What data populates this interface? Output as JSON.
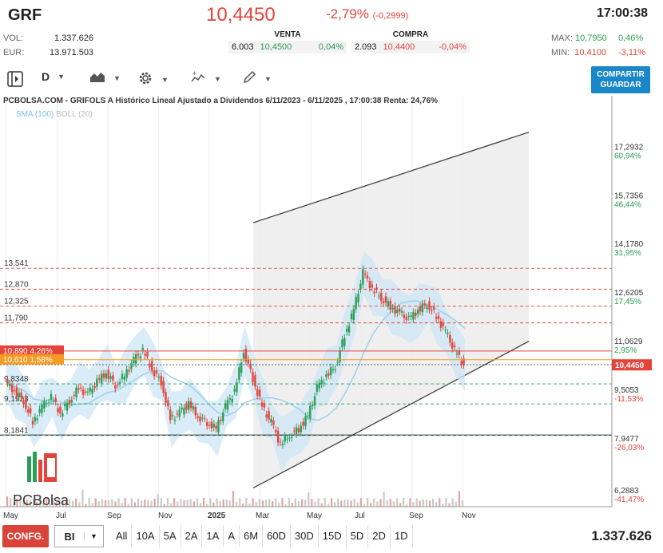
{
  "header": {
    "ticker": "GRF",
    "price": "10,4450",
    "change": "-2,79%",
    "change_abs": "(-0,2999)",
    "time": "17:00:38",
    "vol_label": "VOL:",
    "vol_value": "1.337.626",
    "eur_label": "EUR:",
    "eur_value": "13.971.503",
    "sell_title": "VENTA",
    "sell_qty": "6.003",
    "sell_price": "10,4500",
    "sell_pct": "0,04%",
    "buy_title": "COMPRA",
    "buy_qty": "2.093",
    "buy_price": "10,4400",
    "buy_pct": "-0,04%",
    "max_label": "MAX:",
    "max_value": "10,7950",
    "max_pct": "0,46%",
    "min_label": "MIN:",
    "min_value": "10,4100",
    "min_pct": "-3,11%"
  },
  "toolbar": {
    "period": "D",
    "save_button": "COMPARTIR\nGUARDAR",
    "icons": [
      "panel-toggle-icon",
      "area-chart-icon",
      "gear-icon",
      "indicator-icon",
      "pencil-icon"
    ]
  },
  "chart": {
    "title": "PCBOLSA.COM - GRIFOLS A Histórico Lineal Ajustado a Dividendos 6/11/2023 - 6/11/2025 , 17:00:38 Renta: 24,76%",
    "sma_label": "SMA (100)",
    "boll_label": "BOLL (20)",
    "logo_text": "PCBolsa",
    "colors": {
      "up": "#2a9d57",
      "down": "#e4443a",
      "sma": "#9ccfee",
      "band": "#cde6f6",
      "channel": "#e0e0e0"
    }
  },
  "chart_data": {
    "type": "candlestick",
    "x_ticks": [
      "May",
      "Jul",
      "Sep",
      "Nov",
      "2025",
      "Mar",
      "May",
      "Jul",
      "Sep",
      "Nov"
    ],
    "right_axis": [
      {
        "price": "17,2932",
        "pct": "60,94%"
      },
      {
        "price": "15,7356",
        "pct": "46,44%"
      },
      {
        "price": "14,1780",
        "pct": "31,95%"
      },
      {
        "price": "12,6205",
        "pct": "17,45%"
      },
      {
        "price": "11,0629",
        "pct": "2,95%"
      },
      {
        "price": "9,5053",
        "pct": "-11,53%"
      },
      {
        "price": "7,9477",
        "pct": "-26,03%"
      },
      {
        "price": "6,2883",
        "pct": "-41,47%"
      }
    ],
    "current_price": "10,4450",
    "h_levels": [
      "13,541",
      "12,870",
      "12,325",
      "11,790",
      "9,8348",
      "9,1923",
      "8,1841"
    ],
    "tag_levels": [
      {
        "price": "10,890",
        "pct": "4,26%"
      },
      {
        "price": "10,610",
        "pct": "1,58%"
      }
    ],
    "close_series": [
      9.9,
      9.6,
      9.3,
      8.6,
      9.1,
      9.4,
      8.9,
      9.3,
      9.7,
      9.5,
      9.9,
      10.2,
      9.8,
      10.1,
      10.6,
      10.9,
      10.3,
      9.9,
      8.7,
      8.9,
      9.2,
      8.8,
      8.6,
      8.4,
      9.1,
      9.6,
      10.9,
      10.0,
      9.1,
      8.6,
      7.9,
      8.2,
      8.4,
      8.8,
      9.7,
      10.1,
      10.4,
      11.4,
      12.2,
      13.4,
      12.9,
      12.6,
      12.3,
      12.1,
      11.9,
      12.2,
      12.4,
      12.0,
      11.5,
      10.9,
      10.445
    ],
    "ylim": [
      5.9,
      18.3
    ]
  }
}
